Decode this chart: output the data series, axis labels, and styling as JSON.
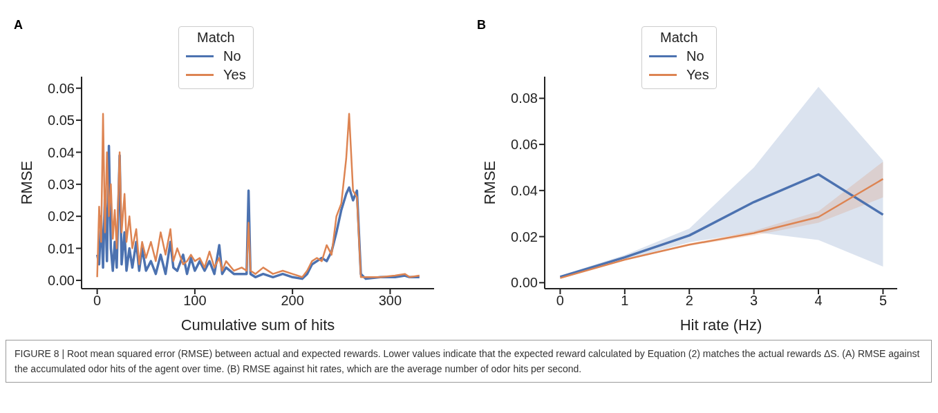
{
  "chart_data": [
    {
      "type": "line",
      "xlabel": "Cumulative sum of hits",
      "ylabel": "RMSE",
      "legend_title": "Match",
      "legend": "top",
      "annotations": [
        "A"
      ],
      "xlim": [
        -16,
        345
      ],
      "xticks": [
        0,
        100,
        200,
        300
      ],
      "ylim": [
        -0.0026,
        0.0636
      ],
      "yticks": [
        {
          "value": 0,
          "label": "0.00"
        },
        {
          "value": 0.01,
          "label": "0.01"
        },
        {
          "value": 0.02,
          "label": "0.02"
        },
        {
          "value": 0.03,
          "label": "0.03"
        },
        {
          "value": 0.04,
          "label": "0.04"
        },
        {
          "value": 0.05,
          "label": "0.05"
        },
        {
          "value": 0.06,
          "label": "0.06"
        }
      ],
      "x": [
        0,
        2,
        4,
        6,
        8,
        10,
        12,
        14,
        16,
        18,
        20,
        23,
        25,
        28,
        30,
        33,
        36,
        40,
        43,
        46,
        50,
        55,
        60,
        65,
        70,
        75,
        78,
        82,
        88,
        92,
        96,
        100,
        105,
        110,
        115,
        120,
        125,
        128,
        132,
        140,
        148,
        153,
        155,
        157,
        162,
        170,
        180,
        190,
        200,
        210,
        215,
        220,
        225,
        230,
        235,
        240,
        245,
        250,
        255,
        258,
        262,
        266,
        270,
        275,
        290,
        305,
        315,
        320,
        330
      ],
      "series": [
        {
          "name": "No",
          "color": "#4c72b0",
          "values": [
            0.008,
            0.005,
            0.02,
            0.004,
            0.027,
            0.006,
            0.042,
            0.01,
            0.003,
            0.012,
            0.004,
            0.039,
            0.005,
            0.015,
            0.003,
            0.01,
            0.004,
            0.012,
            0.003,
            0.01,
            0.003,
            0.006,
            0.002,
            0.008,
            0.002,
            0.012,
            0.004,
            0.003,
            0.008,
            0.002,
            0.007,
            0.003,
            0.006,
            0.003,
            0.006,
            0.002,
            0.011,
            0.002,
            0.004,
            0.002,
            0.002,
            0.002,
            0.028,
            0.002,
            0.001,
            0.002,
            0.001,
            0.002,
            0.001,
            0.0005,
            0.002,
            0.005,
            0.006,
            0.007,
            0.006,
            0.009,
            0.015,
            0.022,
            0.027,
            0.029,
            0.025,
            0.028,
            0.002,
            0.0005,
            0.001,
            0.001,
            0.0015,
            0.001,
            0.001
          ]
        },
        {
          "name": "Yes",
          "color": "#dd8452",
          "values": [
            0.001,
            0.023,
            0.012,
            0.052,
            0.015,
            0.04,
            0.02,
            0.03,
            0.013,
            0.022,
            0.01,
            0.04,
            0.015,
            0.027,
            0.012,
            0.02,
            0.01,
            0.016,
            0.005,
            0.012,
            0.007,
            0.012,
            0.006,
            0.015,
            0.008,
            0.016,
            0.006,
            0.01,
            0.005,
            0.006,
            0.008,
            0.006,
            0.007,
            0.004,
            0.009,
            0.004,
            0.007,
            0.003,
            0.006,
            0.003,
            0.004,
            0.003,
            0.018,
            0.003,
            0.002,
            0.004,
            0.002,
            0.003,
            0.002,
            0.001,
            0.003,
            0.006,
            0.007,
            0.006,
            0.011,
            0.008,
            0.02,
            0.024,
            0.038,
            0.052,
            0.028,
            0.026,
            0.001,
            0.001,
            0.001,
            0.0015,
            0.002,
            0.001,
            0.0015
          ]
        }
      ]
    },
    {
      "type": "line",
      "xlabel": "Hit rate (Hz)",
      "ylabel": "RMSE",
      "legend_title": "Match",
      "legend": "top",
      "annotations": [
        "B",
        "FIGURE 8 | Root mean squared error (RMSE) between actual and expected rewards. Lower values indicate that the expected reward calculated by Equation (2) matches the actual rewards ΔS. (A) RMSE against the accumulated odor hits of the agent over time. (B) RMSE against hit rates, which are the average number of odor hits per second."
      ],
      "xlim": [
        -0.24,
        5.22
      ],
      "xticks": [
        0,
        1,
        2,
        3,
        4,
        5
      ],
      "ylim": [
        -0.0026,
        0.0894
      ],
      "yticks": [
        {
          "value": 0,
          "label": "0.00"
        },
        {
          "value": 0.02,
          "label": "0.02"
        },
        {
          "value": 0.04,
          "label": "0.04"
        },
        {
          "value": 0.06,
          "label": "0.06"
        },
        {
          "value": 0.08,
          "label": "0.08"
        }
      ],
      "x": [
        0,
        1,
        2,
        3,
        4,
        5
      ],
      "series": [
        {
          "name": "No",
          "color": "#4c72b0",
          "values": [
            0.0025,
            0.011,
            0.0205,
            0.035,
            0.047,
            0.0295
          ],
          "lower": [
            0.002,
            0.01,
            0.0175,
            0.022,
            0.0185,
            0.007
          ],
          "upper": [
            0.003,
            0.012,
            0.0235,
            0.05,
            0.085,
            0.053
          ]
        },
        {
          "name": "Yes",
          "color": "#dd8452",
          "values": [
            0.002,
            0.01,
            0.0165,
            0.0215,
            0.0285,
            0.045
          ],
          "lower": [
            0.0018,
            0.0098,
            0.016,
            0.0205,
            0.026,
            0.037
          ],
          "upper": [
            0.0022,
            0.0102,
            0.017,
            0.0225,
            0.031,
            0.0525
          ]
        }
      ]
    }
  ]
}
